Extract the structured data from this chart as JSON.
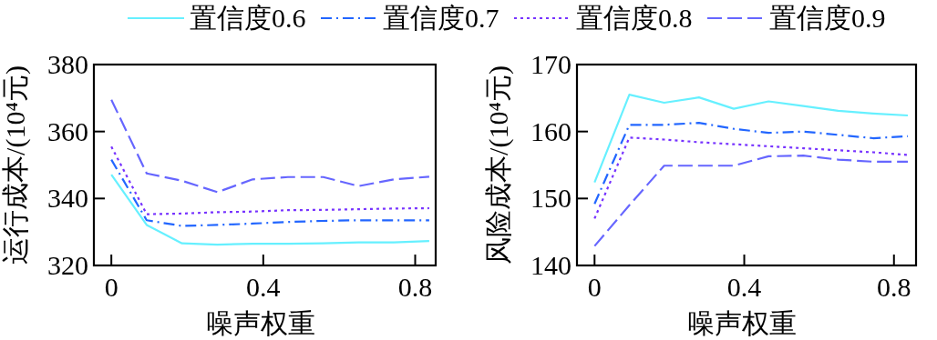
{
  "chart_data": [
    {
      "type": "line",
      "xlabel": "噪声权重",
      "ylabel": "运行成本/(10⁴元)",
      "xlim": [
        -0.046,
        0.854
      ],
      "ylim": [
        320,
        380
      ],
      "xticks": [
        0,
        0.4,
        0.8
      ],
      "yticks": [
        320,
        340,
        360,
        380
      ],
      "legend": "top",
      "grid": false,
      "x": [
        0,
        0.093,
        0.186,
        0.279,
        0.372,
        0.465,
        0.558,
        0.651,
        0.744,
        0.837
      ],
      "series": [
        {
          "name": "置信度0.6",
          "color": "#66f0ff",
          "line_style": "solid",
          "values": [
            347.1,
            332.1,
            326.6,
            326.2,
            326.5,
            326.5,
            326.6,
            326.9,
            326.9,
            327.3
          ]
        },
        {
          "name": "置信度0.7",
          "color": "#2266ff",
          "line_style": "dashdot",
          "values": [
            351.6,
            333.5,
            331.8,
            332.1,
            332.5,
            333.0,
            333.3,
            333.5,
            333.5,
            333.5
          ]
        },
        {
          "name": "置信度0.8",
          "color": "#7733ff",
          "line_style": "dotted",
          "values": [
            355.5,
            335.3,
            335.5,
            335.9,
            336.1,
            336.5,
            336.6,
            336.8,
            337.0,
            337.1
          ]
        },
        {
          "name": "置信度0.9",
          "color": "#6666ff",
          "line_style": "dashed",
          "values": [
            369.5,
            347.5,
            345.3,
            341.9,
            345.7,
            346.4,
            346.4,
            343.7,
            345.7,
            346.5
          ]
        }
      ]
    },
    {
      "type": "line",
      "xlabel": "噪声权重",
      "ylabel": "风险成本/(10⁴元)",
      "xlim": [
        -0.047,
        0.859
      ],
      "ylim": [
        140,
        170
      ],
      "xticks": [
        0,
        0.4,
        0.8
      ],
      "yticks": [
        140,
        150,
        160,
        170
      ],
      "grid": false,
      "x": [
        0,
        0.093,
        0.186,
        0.279,
        0.372,
        0.465,
        0.558,
        0.651,
        0.744,
        0.837
      ],
      "series": [
        {
          "color": "#66f0ff",
          "line_style": "solid",
          "values": [
            152.4,
            165.5,
            164.3,
            165.1,
            163.4,
            164.5,
            163.8,
            163.1,
            162.7,
            162.4
          ]
        },
        {
          "color": "#2266ff",
          "line_style": "dashdot",
          "values": [
            149.2,
            161.0,
            161.0,
            161.3,
            160.4,
            159.8,
            160.0,
            159.5,
            159.0,
            159.3
          ]
        },
        {
          "color": "#7733ff",
          "line_style": "dotted",
          "values": [
            147.0,
            159.1,
            158.8,
            158.4,
            158.1,
            157.8,
            157.5,
            157.2,
            156.9,
            156.5
          ]
        },
        {
          "color": "#6666ff",
          "line_style": "dashed",
          "values": [
            142.9,
            149.0,
            154.9,
            154.9,
            154.9,
            156.3,
            156.4,
            155.8,
            155.5,
            155.5
          ]
        }
      ]
    }
  ]
}
